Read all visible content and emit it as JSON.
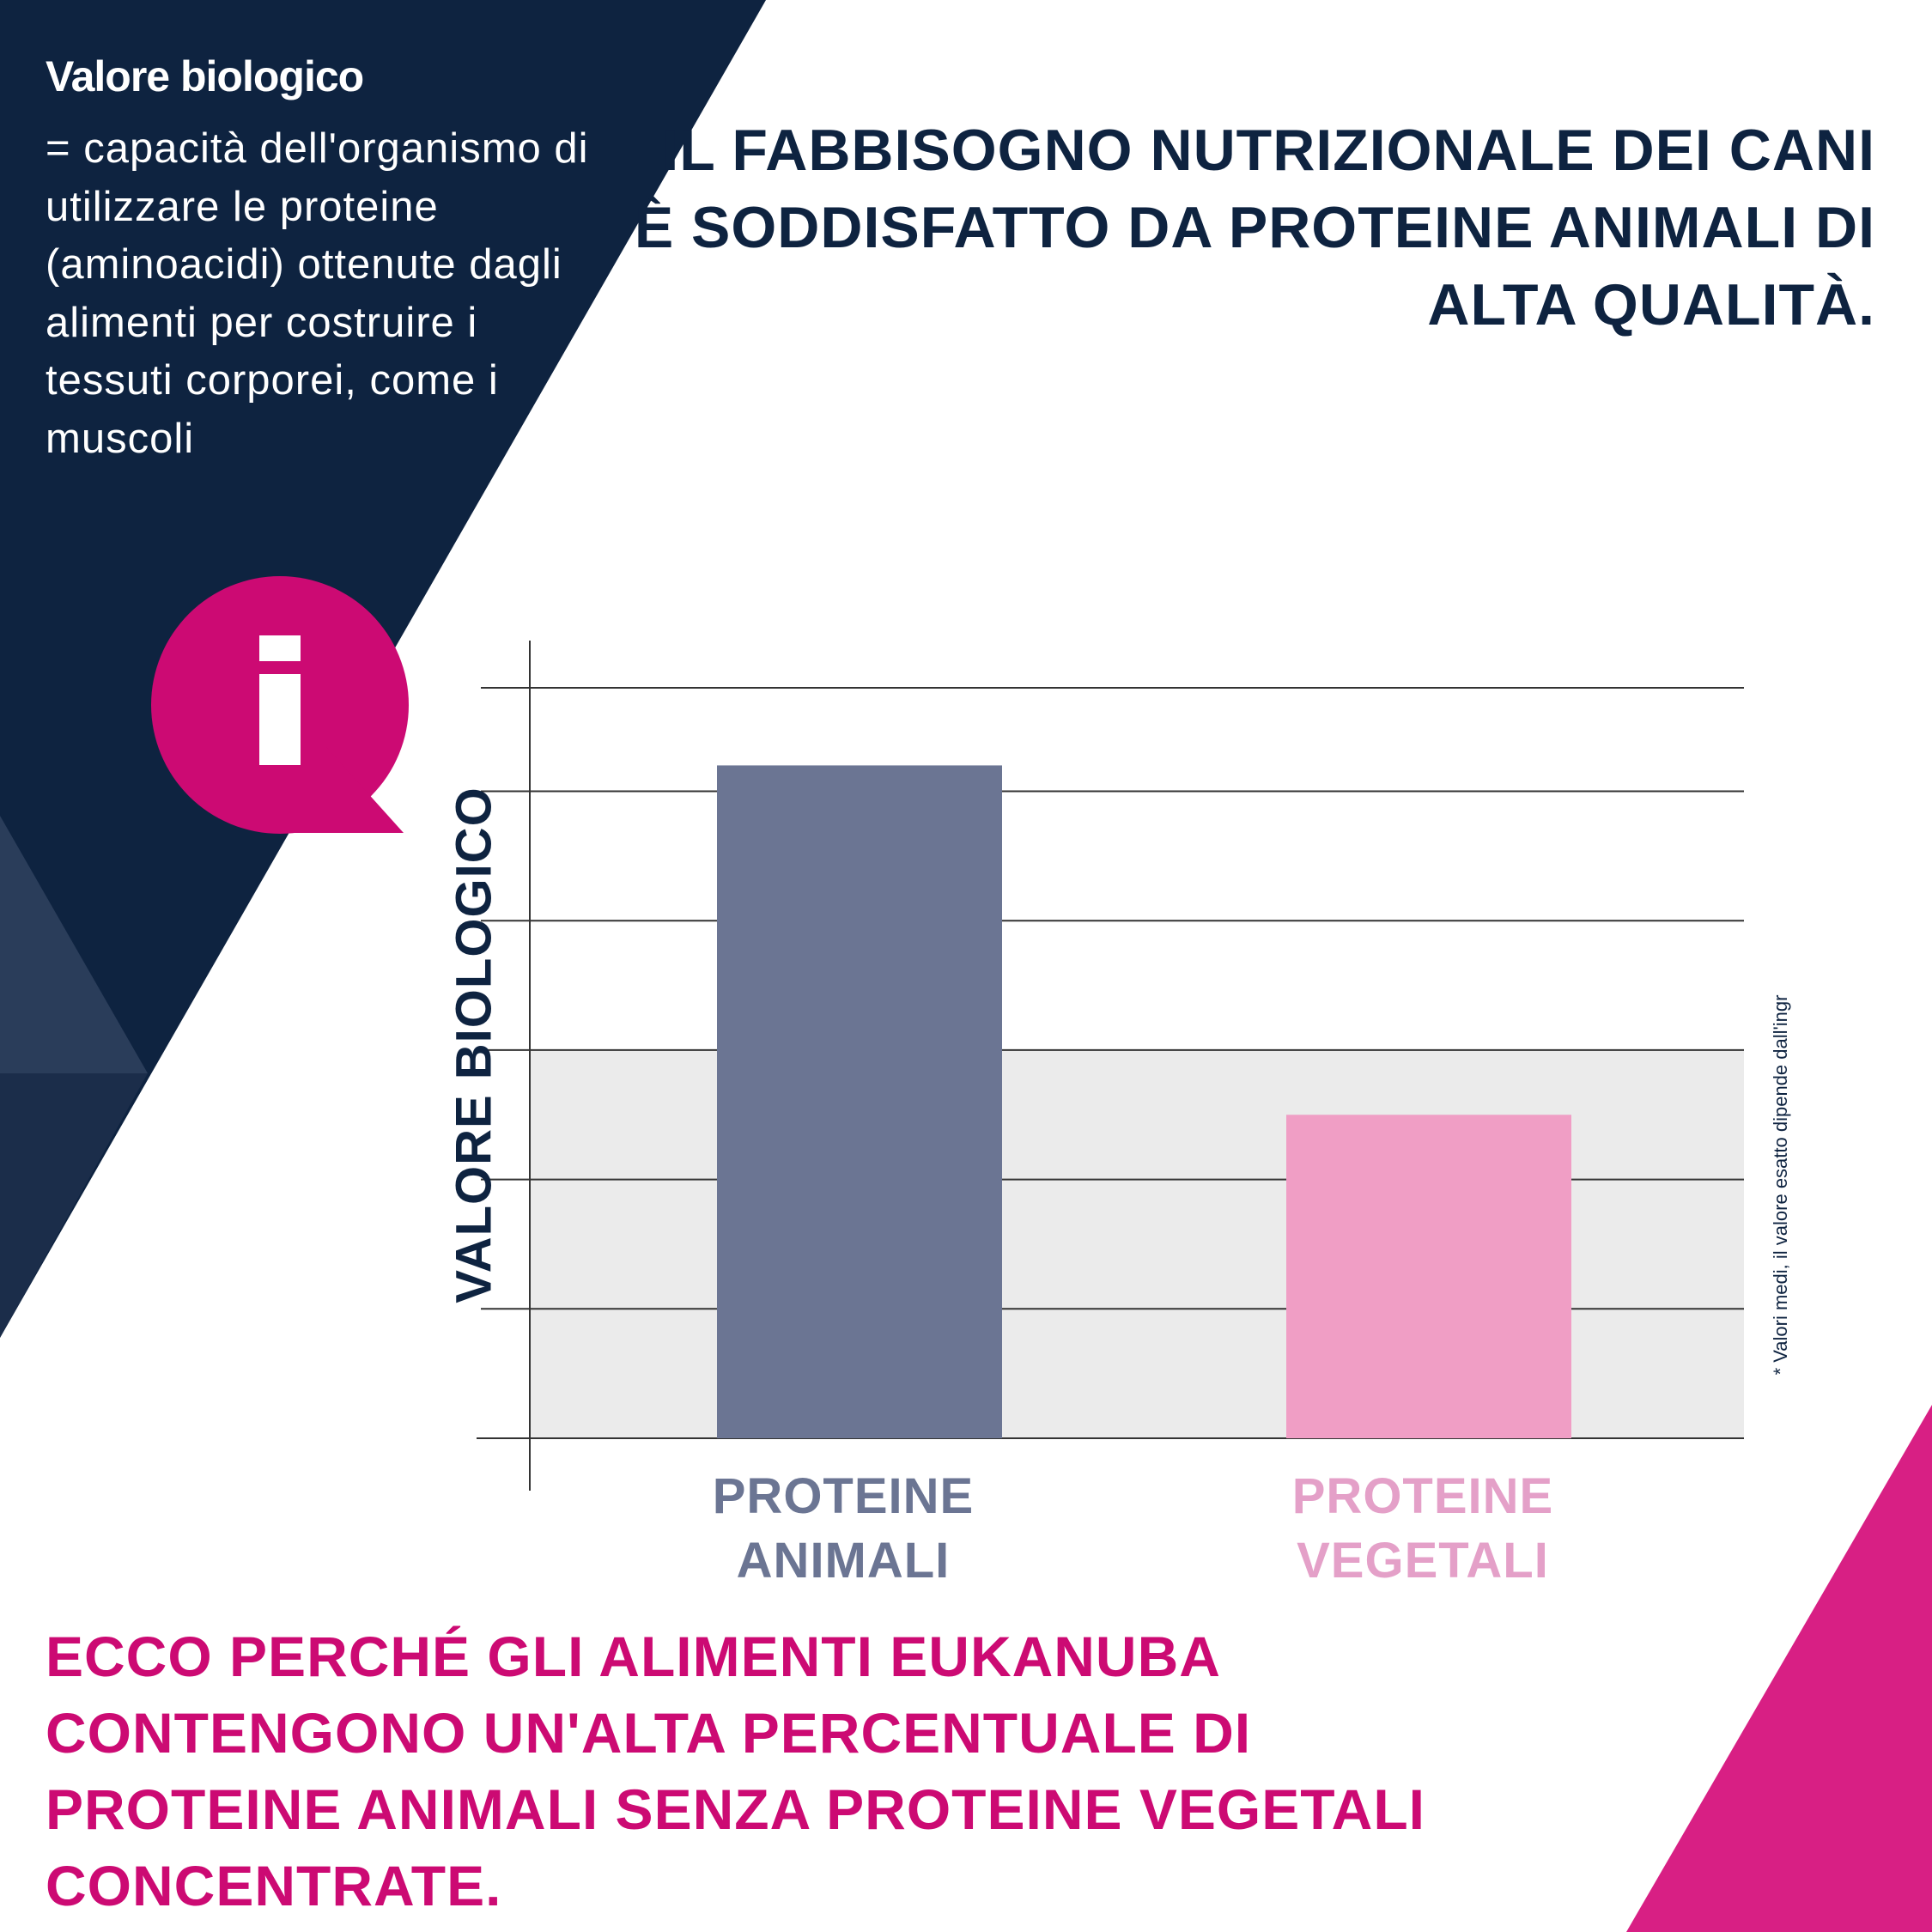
{
  "definition": {
    "title": "Valore biologico",
    "body": "= capacità dell'organismo di utilizzare le proteine (aminoacidi) ottenute dagli alimenti per costruire i tessuti corporei, come i muscoli"
  },
  "headline": "IL FABBISOGNO NUTRIZIONALE DEI CANI È SODDISFATTO DA PROTEINE ANIMALI DI ALTA QUALITÀ.",
  "info_icon": "info-speech-bubble-icon",
  "colors": {
    "navy": "#0e2340",
    "magenta": "#cc0a73",
    "animal_bar": "#6b7593",
    "plant_bar": "#f09ec5",
    "grey_band": "#ebebeb"
  },
  "chart_data": {
    "type": "bar",
    "categories": [
      "PROTEINE ANIMALI",
      "PROTEINE VEGETALI"
    ],
    "category_lines": [
      [
        "PROTEINE",
        "ANIMALI"
      ],
      [
        "PROTEINE",
        "VEGETALI"
      ]
    ],
    "values": [
      5.2,
      2.5
    ],
    "bar_colors": [
      "#6b7593",
      "#f09ec5"
    ],
    "label_colors": [
      "#6b7593",
      "#e4a0c8"
    ],
    "ylabel": "VALORE BIOLOGICO",
    "xlabel": "",
    "ylim": [
      0,
      5.8
    ],
    "gridlines": [
      0,
      1,
      2,
      3,
      4,
      5,
      5.8
    ],
    "shaded_band": [
      0,
      3
    ],
    "grid": true,
    "tick_labels": false
  },
  "footnote": "* Valori medi, il valore esatto dipende dall'ingr",
  "conclusion": "ECCO PERCHÉ GLI ALIMENTI EUKANUBA CONTENGONO UN'ALTA PERCENTUALE DI PROTEINE ANIMALI SENZA PROTEINE VEGETALI CONCENTRATE."
}
